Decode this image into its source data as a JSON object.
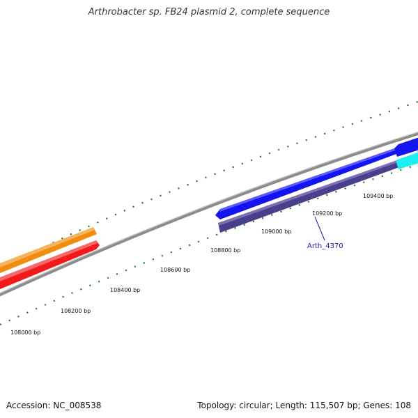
{
  "title": "Arthrobacter sp. FB24 plasmid 2, complete sequence",
  "footer": {
    "accession": "Accession: NC_008538",
    "summary": "Topology: circular; Length: 115,507 bp; Genes: 108"
  },
  "ruler": {
    "labels": [
      "108000 bp",
      "108200 bp",
      "108400 bp",
      "108600 bp",
      "108800 bp",
      "109000 bp",
      "109200 bp",
      "109400 bp"
    ]
  },
  "genes": {
    "highlight_label": "Arth_4370"
  },
  "colors": {
    "backbone": "#8c8c8c",
    "tick": "#1c7a1c",
    "orange": "#f28c0f",
    "red": "#f21a1a",
    "blue": "#1414f0",
    "slate": "#4a3f8c",
    "cyan": "#19f0f0"
  }
}
